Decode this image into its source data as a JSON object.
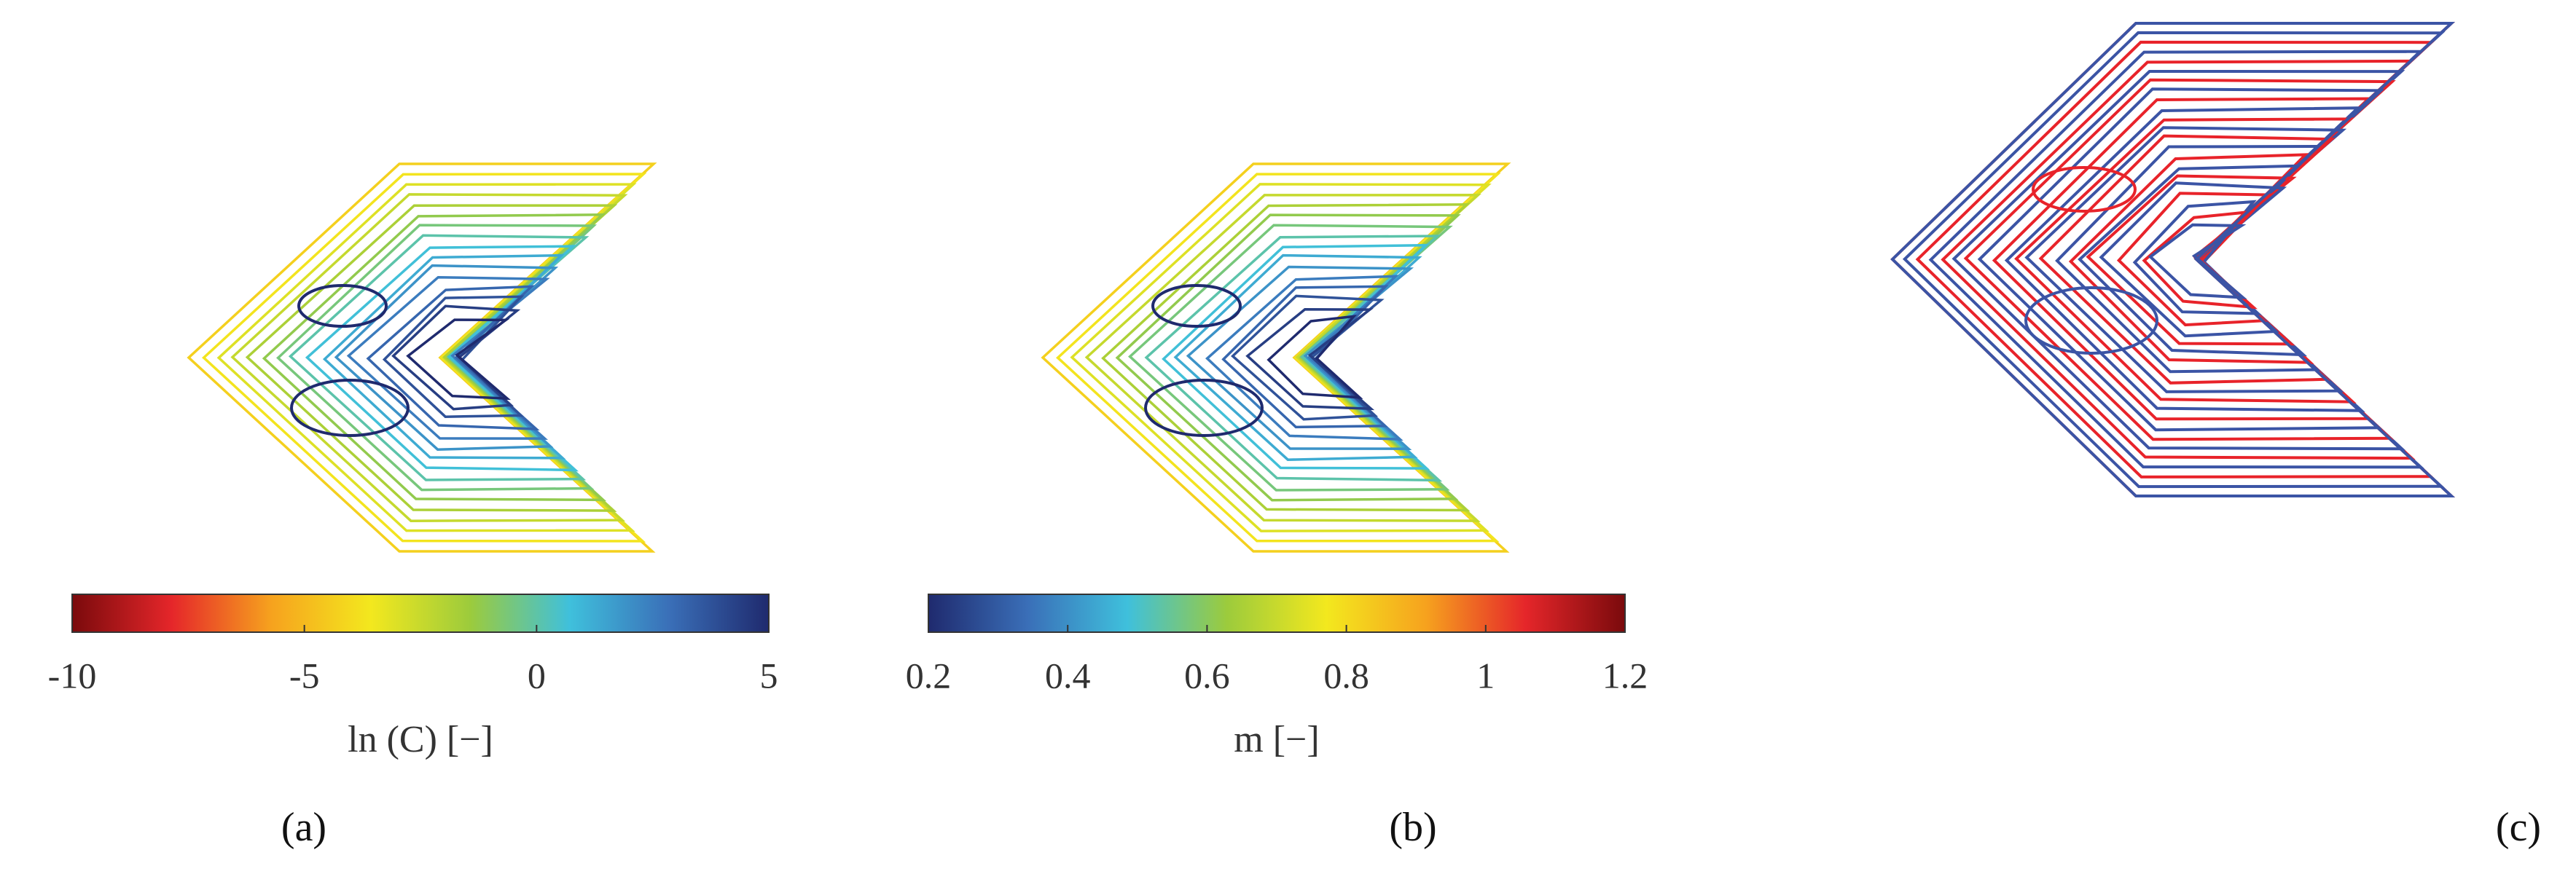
{
  "chart_data": [
    {
      "type": "contour",
      "panel_label": "(a)",
      "xlabel": "ln (C) [−]",
      "xlim": [
        -10,
        5
      ],
      "xticks": [
        -10,
        -5,
        0,
        5
      ],
      "colors": [
        "#7a0a0c",
        "#e5262a",
        "#f6a21e",
        "#f3e81e",
        "#9ccb3c",
        "#3fc0dc",
        "#3a6fb8",
        "#1f2a6e"
      ]
    },
    {
      "type": "contour",
      "panel_label": "(b)",
      "xlabel": "m [−]",
      "xlim": [
        0.2,
        1.2
      ],
      "xticks": [
        0.2,
        0.4,
        0.6,
        0.8,
        1,
        1.2
      ],
      "colors": [
        "#1f2a6e",
        "#3a6fb8",
        "#3fc0dc",
        "#9ccb3c",
        "#f3e81e",
        "#f6a21e",
        "#e5262a",
        "#7a0a0c"
      ]
    },
    {
      "type": "overlay",
      "panel_label": "(c)",
      "colors": [
        "#e8232a",
        "#3b54a5"
      ]
    }
  ]
}
